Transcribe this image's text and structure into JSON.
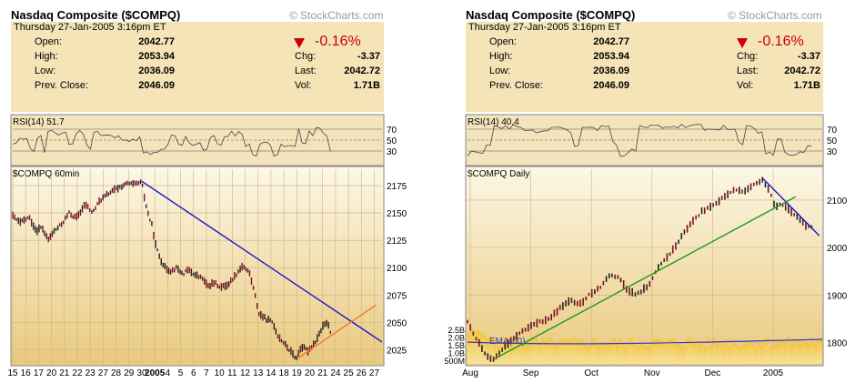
{
  "charts": [
    {
      "title": "Nasdaq Composite ($COMPQ)",
      "credit": "© StockCharts.com",
      "date": "Thursday  27-Jan-2005  3:16pm ET",
      "stats": {
        "open_label": "Open:",
        "open": "2042.77",
        "high_label": "High:",
        "high": "2053.94",
        "low_label": "Low:",
        "low": "2036.09",
        "prev_label": "Prev. Close:",
        "prev": "2046.09",
        "chg_pct": "-0.16%",
        "chg_label": "Chg:",
        "chg": "-3.37",
        "last_label": "Last:",
        "last": "2042.72",
        "vol_label": "Vol:",
        "vol": "1.71B"
      },
      "rsi_label": "RSI(14)  51.7",
      "price_label": "$COMPQ 60min"
    },
    {
      "title": "Nasdaq Composite ($COMPQ)",
      "credit": "© StockCharts.com",
      "date": "Thursday  27-Jan-2005  3:16pm ET",
      "stats": {
        "open_label": "Open:",
        "open": "2042.77",
        "high_label": "High:",
        "high": "2053.94",
        "low_label": "Low:",
        "low": "2036.09",
        "prev_label": "Prev. Close:",
        "prev": "2046.09",
        "chg_pct": "-0.16%",
        "chg_label": "Chg:",
        "chg": "-3.37",
        "last_label": "Last:",
        "last": "2042.72",
        "vol_label": "Vol:",
        "vol": "1.71B"
      },
      "rsi_label": "RSI(14)  40.4",
      "price_label": "$COMPQ Daily",
      "ema_label": "EMA(60)"
    }
  ],
  "chart_data": [
    {
      "type": "line",
      "symbol": "$COMPQ",
      "interval": "60min",
      "rsi_levels": [
        70,
        50,
        30
      ],
      "ylim": [
        2012,
        2190
      ],
      "y_ticks": [
        2175,
        2150,
        2125,
        2100,
        2075,
        2050,
        2025
      ],
      "x_ticks": [
        "15",
        "16",
        "17",
        "20",
        "21",
        "22",
        "23",
        "27",
        "28",
        "29",
        "30",
        "2005",
        "4",
        "5",
        "6",
        "7",
        "10",
        "11",
        "12",
        "13",
        "14",
        "18",
        "19",
        "20",
        "21",
        "24",
        "25",
        "26",
        "27"
      ],
      "price_path": [
        {
          "x": 0,
          "y": 2147
        },
        {
          "x": 0.6,
          "y": 2141
        },
        {
          "x": 1.4,
          "y": 2146
        },
        {
          "x": 2,
          "y": 2134
        },
        {
          "x": 2.5,
          "y": 2137
        },
        {
          "x": 3,
          "y": 2125
        },
        {
          "x": 3.5,
          "y": 2133
        },
        {
          "x": 4.2,
          "y": 2140
        },
        {
          "x": 4.8,
          "y": 2150
        },
        {
          "x": 5.4,
          "y": 2145
        },
        {
          "x": 6.2,
          "y": 2158
        },
        {
          "x": 6.8,
          "y": 2150
        },
        {
          "x": 7.4,
          "y": 2161
        },
        {
          "x": 8.2,
          "y": 2168
        },
        {
          "x": 9,
          "y": 2173
        },
        {
          "x": 9.8,
          "y": 2177
        },
        {
          "x": 10.4,
          "y": 2176
        },
        {
          "x": 11,
          "y": 2178
        },
        {
          "x": 11.3,
          "y": 2160
        },
        {
          "x": 11.6,
          "y": 2147
        },
        {
          "x": 11.9,
          "y": 2138
        },
        {
          "x": 12.2,
          "y": 2120
        },
        {
          "x": 12.6,
          "y": 2108
        },
        {
          "x": 13,
          "y": 2100
        },
        {
          "x": 13.5,
          "y": 2097
        },
        {
          "x": 14,
          "y": 2100
        },
        {
          "x": 14.5,
          "y": 2094
        },
        {
          "x": 15,
          "y": 2098
        },
        {
          "x": 15.6,
          "y": 2093
        },
        {
          "x": 16.2,
          "y": 2090
        },
        {
          "x": 16.6,
          "y": 2083
        },
        {
          "x": 17.2,
          "y": 2086
        },
        {
          "x": 17.8,
          "y": 2082
        },
        {
          "x": 18.4,
          "y": 2085
        },
        {
          "x": 19,
          "y": 2093
        },
        {
          "x": 19.6,
          "y": 2102
        },
        {
          "x": 20.2,
          "y": 2095
        },
        {
          "x": 20.6,
          "y": 2078
        },
        {
          "x": 21,
          "y": 2058
        },
        {
          "x": 21.6,
          "y": 2053
        },
        {
          "x": 22.2,
          "y": 2050
        },
        {
          "x": 22.6,
          "y": 2038
        },
        {
          "x": 23.2,
          "y": 2030
        },
        {
          "x": 23.8,
          "y": 2022
        },
        {
          "x": 24.2,
          "y": 2017
        },
        {
          "x": 24.6,
          "y": 2028
        },
        {
          "x": 25.2,
          "y": 2024
        },
        {
          "x": 25.8,
          "y": 2032
        },
        {
          "x": 26.4,
          "y": 2045
        },
        {
          "x": 26.8,
          "y": 2050
        },
        {
          "x": 27.1,
          "y": 2042
        }
      ],
      "trendlines": [
        {
          "color": "#1515c8",
          "from": {
            "x": 11,
            "y": 2179
          },
          "to": {
            "x": 31.5,
            "y": 2032
          }
        },
        {
          "color": "#f07a30",
          "from": {
            "x": 24.3,
            "y": 2017
          },
          "to": {
            "x": 31,
            "y": 2066
          }
        }
      ]
    },
    {
      "type": "line",
      "symbol": "$COMPQ",
      "interval": "Daily",
      "rsi_levels": [
        70,
        50,
        30
      ],
      "ylim": [
        1755,
        2165
      ],
      "y_ticks": [
        2100,
        2000,
        1900,
        1800
      ],
      "x_ticks": [
        "Aug",
        "Sep",
        "Oct",
        "Nov",
        "Dec",
        "2005"
      ],
      "volume_ticks": [
        "2.5B",
        "2.0B",
        "1.5B",
        "1.0B",
        "500M"
      ],
      "price_path": [
        {
          "x": 0,
          "y": 1845
        },
        {
          "x": 0.1,
          "y": 1820
        },
        {
          "x": 0.2,
          "y": 1797
        },
        {
          "x": 0.32,
          "y": 1770
        },
        {
          "x": 0.45,
          "y": 1765
        },
        {
          "x": 0.6,
          "y": 1788
        },
        {
          "x": 0.8,
          "y": 1813
        },
        {
          "x": 1,
          "y": 1830
        },
        {
          "x": 1.2,
          "y": 1842
        },
        {
          "x": 1.4,
          "y": 1852
        },
        {
          "x": 1.6,
          "y": 1877
        },
        {
          "x": 1.75,
          "y": 1888
        },
        {
          "x": 1.9,
          "y": 1880
        },
        {
          "x": 2.05,
          "y": 1900
        },
        {
          "x": 2.25,
          "y": 1917
        },
        {
          "x": 2.4,
          "y": 1942
        },
        {
          "x": 2.55,
          "y": 1938
        },
        {
          "x": 2.7,
          "y": 1912
        },
        {
          "x": 2.85,
          "y": 1900
        },
        {
          "x": 3.05,
          "y": 1918
        },
        {
          "x": 3.25,
          "y": 1962
        },
        {
          "x": 3.45,
          "y": 1990
        },
        {
          "x": 3.7,
          "y": 2038
        },
        {
          "x": 3.95,
          "y": 2075
        },
        {
          "x": 4.15,
          "y": 2090
        },
        {
          "x": 4.35,
          "y": 2108
        },
        {
          "x": 4.55,
          "y": 2123
        },
        {
          "x": 4.7,
          "y": 2118
        },
        {
          "x": 4.85,
          "y": 2132
        },
        {
          "x": 5,
          "y": 2142
        },
        {
          "x": 5.1,
          "y": 2120
        },
        {
          "x": 5.2,
          "y": 2088
        },
        {
          "x": 5.35,
          "y": 2090
        },
        {
          "x": 5.5,
          "y": 2072
        },
        {
          "x": 5.6,
          "y": 2062
        },
        {
          "x": 5.72,
          "y": 2046
        },
        {
          "x": 5.82,
          "y": 2042
        }
      ],
      "trendlines": [
        {
          "color": "#1515c8",
          "from": {
            "x": 5.0,
            "y": 2145
          },
          "to": {
            "x": 5.95,
            "y": 2025
          }
        },
        {
          "color": "#1c9a1c",
          "from": {
            "x": 0.45,
            "y": 1765
          },
          "to": {
            "x": 5.55,
            "y": 2107
          }
        }
      ]
    }
  ]
}
